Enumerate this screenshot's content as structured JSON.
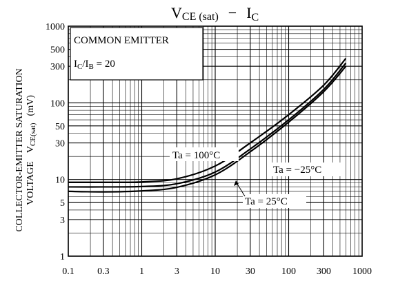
{
  "chart_data": {
    "type": "line",
    "title": {
      "main": "V",
      "main_sub": "CE (sat)",
      "dash": "−",
      "right": "I",
      "right_sub": "C"
    },
    "ylabel": {
      "line1": "COLLECTOR-EMITTER SATURATION",
      "line2": "VOLTAGE",
      "symbol": "V",
      "symbol_sub": "CE(sat)",
      "unit": "(mV)"
    },
    "x_scale": "log",
    "y_scale": "log",
    "xlim": [
      0.1,
      1000
    ],
    "ylim": [
      1,
      1000
    ],
    "x_ticks": [
      {
        "value": 0.1,
        "label": "0.1"
      },
      {
        "value": 0.3,
        "label": "0.3"
      },
      {
        "value": 1,
        "label": "1"
      },
      {
        "value": 3,
        "label": "3"
      },
      {
        "value": 10,
        "label": "10"
      },
      {
        "value": 30,
        "label": "30"
      },
      {
        "value": 100,
        "label": "100"
      },
      {
        "value": 300,
        "label": "300"
      },
      {
        "value": 1000,
        "label": "1000"
      }
    ],
    "y_ticks": [
      {
        "value": 1,
        "label": "1"
      },
      {
        "value": 3,
        "label": "3"
      },
      {
        "value": 5,
        "label": "5"
      },
      {
        "value": 10,
        "label": "10"
      },
      {
        "value": 30,
        "label": "30"
      },
      {
        "value": 50,
        "label": "50"
      },
      {
        "value": 100,
        "label": "100"
      },
      {
        "value": 300,
        "label": "300"
      },
      {
        "value": 500,
        "label": "500"
      },
      {
        "value": 1000,
        "label": "1000"
      }
    ],
    "grid": true,
    "legend_box": {
      "line1": "COMMON EMITTER",
      "line2_main": "I",
      "line2_sub1": "C",
      "line2_mid": "/I",
      "line2_sub2": "B",
      "line2_end": " = 20"
    },
    "series": [
      {
        "name": "Ta = 100°C",
        "x": [
          0.1,
          0.3,
          1,
          3,
          10,
          30,
          100,
          300,
          600
        ],
        "y": [
          9.2,
          9.2,
          9.3,
          10.2,
          15,
          30,
          70,
          170,
          380
        ]
      },
      {
        "name": "Ta = −25°C",
        "x": [
          0.1,
          0.3,
          1,
          3,
          10,
          30,
          100,
          300,
          600
        ],
        "y": [
          8.0,
          8.0,
          8.1,
          8.8,
          12.5,
          25,
          60,
          150,
          330
        ]
      },
      {
        "name": "Ta = 25°C",
        "x": [
          0.1,
          0.3,
          1,
          3,
          10,
          30,
          100,
          300,
          600
        ],
        "y": [
          7.0,
          6.9,
          7.1,
          7.9,
          11.5,
          23,
          56,
          140,
          300
        ]
      }
    ]
  }
}
